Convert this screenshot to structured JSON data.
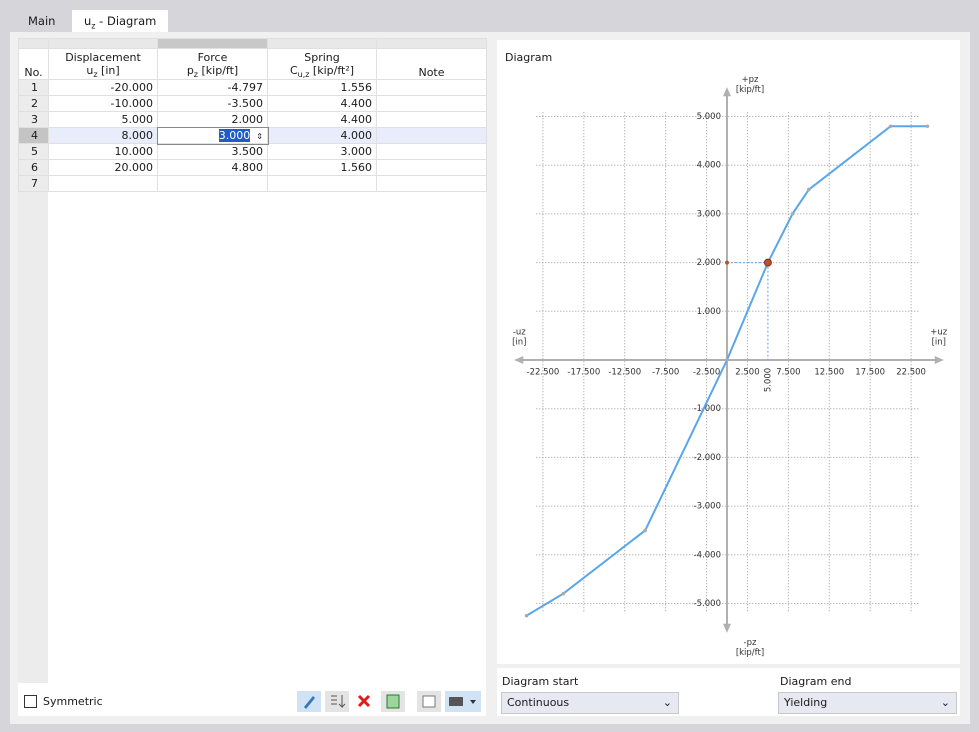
{
  "tabs": [
    "Main",
    {
      "symbol": "u",
      "sub": "z",
      "rest": " - Diagram"
    }
  ],
  "table": {
    "columns": [
      {
        "title": "No."
      },
      {
        "title": "Displacement",
        "symbol": "u",
        "sub": "z",
        "unit": " [in]"
      },
      {
        "title": "Force",
        "symbol": "p",
        "sub": "z",
        "unit": " [kip/ft]"
      },
      {
        "title": "Spring",
        "symbol": "C",
        "sub": "u,z",
        "unit": " [kip/ft²]"
      },
      {
        "title": "Note"
      }
    ],
    "rows": [
      [
        "1",
        "-20.000",
        "-4.797",
        "1.556",
        null
      ],
      [
        "2",
        "-10.000",
        "-3.500",
        "4.400",
        null
      ],
      [
        "3",
        "5.000",
        "2.000",
        "4.400",
        null
      ],
      [
        "4",
        "8.000",
        "3.000",
        "4.000",
        null
      ],
      [
        "5",
        "10.000",
        "3.500",
        "3.000",
        null
      ],
      [
        "6",
        "20.000",
        "4.800",
        "1.560",
        null
      ],
      [
        "7",
        null,
        null,
        null,
        null
      ]
    ],
    "selected_row": 3
  },
  "symmetric_label": "Symmetric",
  "chart_data": {
    "type": "line",
    "title": "Diagram",
    "x": [
      -24.5,
      -20,
      -10,
      0,
      5,
      8,
      10,
      20,
      24.5
    ],
    "series": [
      {
        "name": "pz",
        "color": "#5aa6ea",
        "values": [
          -5.25,
          -4.797,
          -3.5,
          0,
          2,
          3,
          3.5,
          4.8,
          4.8
        ]
      }
    ],
    "xlim": [
      -26,
      26.5
    ],
    "ylim": [
      -5.6,
      5.6
    ],
    "xticks": [
      {
        "value": -22.5,
        "label": "-22.500"
      },
      {
        "value": -17.5,
        "label": "-17.500"
      },
      {
        "value": -12.5,
        "label": "-12.500"
      },
      {
        "value": -7.5,
        "label": "-7.500"
      },
      {
        "value": -2.5,
        "label": "-2.500"
      },
      {
        "value": 2.5,
        "label": "2.500"
      },
      {
        "value": 7.5,
        "label": "7.500"
      },
      {
        "value": 12.5,
        "label": "12.500"
      },
      {
        "value": 17.5,
        "label": "17.500"
      },
      {
        "value": 22.5,
        "label": "22.500"
      }
    ],
    "yticks": [
      {
        "value": 5,
        "label": "5.000"
      },
      {
        "value": 4,
        "label": "4.000"
      },
      {
        "value": 3,
        "label": "3.000"
      },
      {
        "value": 2,
        "label": "2.000"
      },
      {
        "value": 1,
        "label": "1.000"
      },
      {
        "value": -1,
        "label": "-1.000"
      },
      {
        "value": -2,
        "label": "-2.000"
      },
      {
        "value": -3,
        "label": "-3.000"
      },
      {
        "value": -4,
        "label": "-4.000"
      },
      {
        "value": -5,
        "label": "-5.000"
      }
    ],
    "grid": true,
    "axis_labels": {
      "x_neg": [
        "-uz",
        "[in]"
      ],
      "x_pos": [
        "+uz",
        "[in]"
      ],
      "y_pos": [
        "+pz",
        "[kip/ft]"
      ],
      "y_neg": [
        "-pz",
        "[kip/ft]"
      ]
    },
    "highlight": {
      "x": 5,
      "y": 2,
      "label": "5.000"
    }
  },
  "diagram_start": {
    "label": "Diagram start",
    "value": "Continuous"
  },
  "diagram_end": {
    "label": "Diagram end",
    "value": "Yielding"
  }
}
